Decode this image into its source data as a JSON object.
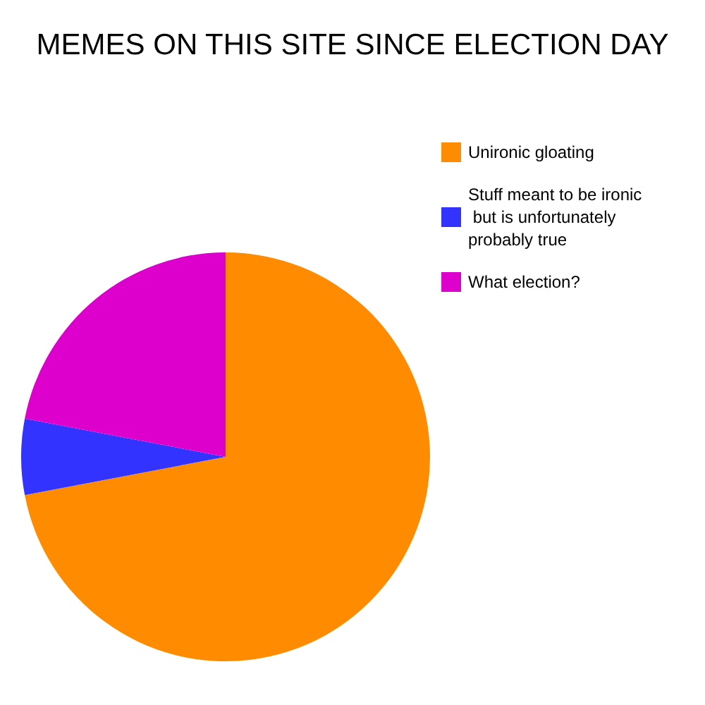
{
  "chart_data": {
    "type": "pie",
    "title": "MEMES ON THIS SITE SINCE ELECTION DAY",
    "categories": [
      "Unironic gloating",
      "Stuff meant to be ironic but is unfortunately probably true",
      "What election?"
    ],
    "values": [
      72,
      6,
      22
    ],
    "colors": [
      "#ff8c00",
      "#3333ff",
      "#dd00cc"
    ],
    "legend": "top right"
  }
}
